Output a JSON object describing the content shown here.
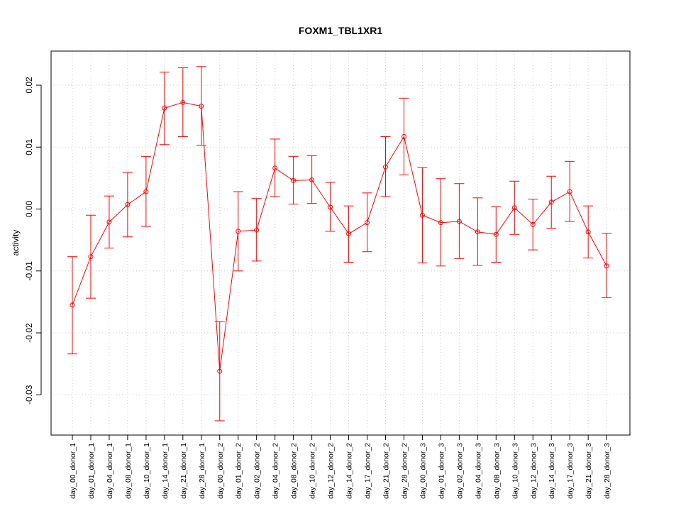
{
  "chart_data": {
    "type": "line",
    "title": "FOXM1_TBL1XR1",
    "xlabel": "",
    "ylabel": "activity",
    "ylim": [
      -0.0365,
      0.0255
    ],
    "yticks": [
      -0.03,
      -0.02,
      -0.01,
      0.0,
      0.01,
      0.02
    ],
    "ytick_labels": [
      "-0.03",
      "-0.02",
      "-0.01",
      "0.00",
      "0.01",
      "0.02"
    ],
    "grid": true,
    "color": "#ff0000",
    "categories": [
      "day_00_donor_1",
      "day_01_donor_1",
      "day_04_donor_1",
      "day_08_donor_1",
      "day_10_donor_1",
      "day_14_donor_1",
      "day_21_donor_1",
      "day_28_donor_1",
      "day_00_donor_2",
      "day_01_donor_2",
      "day_02_donor_2",
      "day_04_donor_2",
      "day_08_donor_2",
      "day_10_donor_2",
      "day_12_donor_2",
      "day_14_donor_2",
      "day_17_donor_2",
      "day_21_donor_2",
      "day_28_donor_2",
      "day_00_donor_3",
      "day_01_donor_3",
      "day_02_donor_3",
      "day_04_donor_3",
      "day_08_donor_3",
      "day_10_donor_3",
      "day_12_donor_3",
      "day_14_donor_3",
      "day_17_donor_3",
      "day_21_donor_3",
      "day_28_donor_3"
    ],
    "series": [
      {
        "values": [
          -0.0155,
          -0.0077,
          -0.0021,
          0.0007,
          0.0028,
          0.0163,
          0.0172,
          0.0166,
          -0.0262,
          -0.0036,
          -0.0034,
          0.0066,
          0.0046,
          0.0047,
          0.0003,
          -0.004,
          -0.0022,
          0.0068,
          0.0117,
          -0.001,
          -0.0022,
          -0.002,
          -0.0037,
          -0.0041,
          0.0002,
          -0.0025,
          0.0011,
          0.0028,
          -0.0037,
          -0.0092
        ],
        "lower": [
          -0.0234,
          -0.0144,
          -0.0063,
          -0.0045,
          -0.0028,
          0.0104,
          0.0117,
          0.0103,
          -0.0342,
          -0.01,
          -0.0084,
          0.002,
          0.0008,
          0.0009,
          -0.0036,
          -0.0086,
          -0.0069,
          0.002,
          0.0055,
          -0.0087,
          -0.0092,
          -0.008,
          -0.0091,
          -0.0086,
          -0.0041,
          -0.0066,
          -0.0031,
          -0.002,
          -0.0079,
          -0.0143
        ],
        "upper": [
          -0.0077,
          -0.001,
          0.0021,
          0.0059,
          0.0085,
          0.0221,
          0.0228,
          0.023,
          -0.0182,
          0.0028,
          0.0017,
          0.0113,
          0.0085,
          0.0086,
          0.0043,
          0.0005,
          0.0026,
          0.0117,
          0.0179,
          0.0067,
          0.0049,
          0.0041,
          0.0018,
          0.0004,
          0.0045,
          0.0016,
          0.0053,
          0.0077,
          0.0005,
          -0.0039
        ]
      }
    ]
  }
}
